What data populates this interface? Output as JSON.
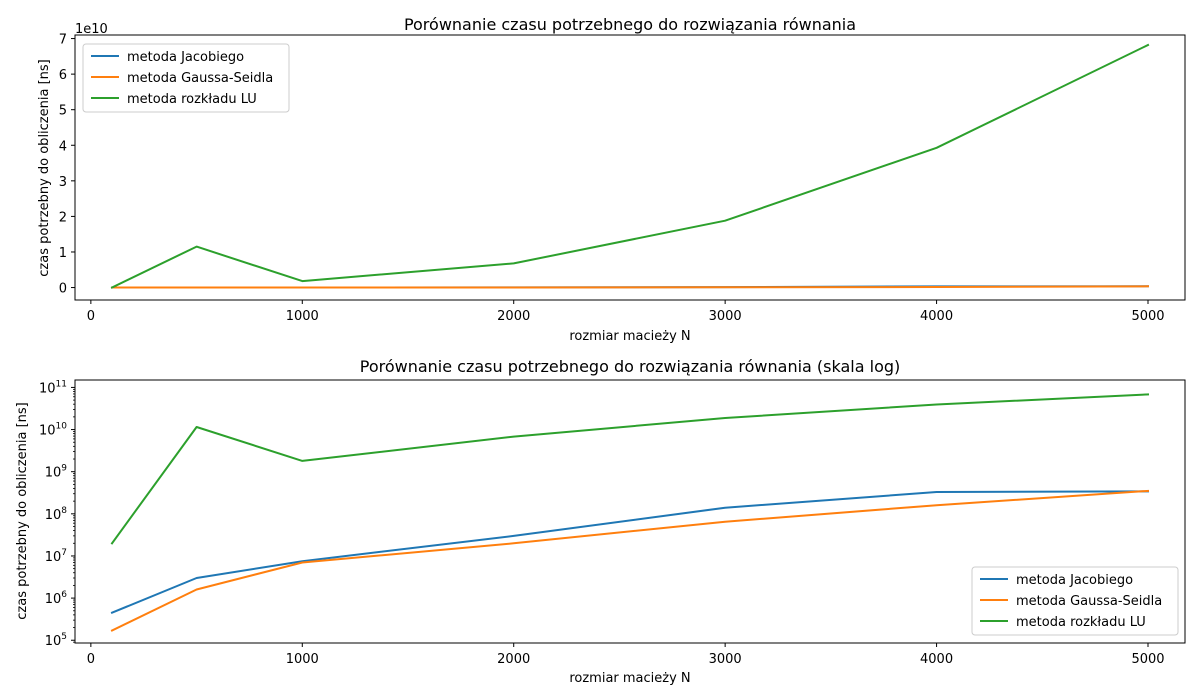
{
  "series_colors": {
    "jacobi": "#1f77b4",
    "gauss_seidel": "#ff7f0e",
    "lu": "#2ca02c"
  },
  "chart_data": [
    {
      "type": "line",
      "title": "Porównanie czasu potrzebnego do rozwiązania równania",
      "xlabel": "rozmiar macieży N",
      "ylabel": "czas potrzebny do obliczenia [ns]",
      "x": [
        100,
        500,
        1000,
        2000,
        3000,
        4000,
        5000
      ],
      "xlim": [
        -75,
        5175
      ],
      "ylim": [
        -0.35,
        7.1
      ],
      "yscale": "linear",
      "y_offset_text": "1e10",
      "x_ticks": [
        0,
        1000,
        2000,
        3000,
        4000,
        5000
      ],
      "y_ticks": [
        0,
        1,
        2,
        3,
        4,
        5,
        6,
        7
      ],
      "legend_position": "upper-left",
      "series": [
        {
          "name": "metoda Jacobiego",
          "color": "#1f77b4",
          "values": [
            4.5e-05,
            0.0003,
            0.00075,
            0.003,
            0.014,
            0.033,
            0.034
          ]
        },
        {
          "name": "metoda Gaussa-Seidla",
          "color": "#ff7f0e",
          "values": [
            1.7e-05,
            0.00016,
            0.0007,
            0.002,
            0.0065,
            0.016,
            0.035
          ]
        },
        {
          "name": "metoda rozkładu LU",
          "color": "#2ca02c",
          "values": [
            0.002,
            1.15,
            0.18,
            0.68,
            1.88,
            3.93,
            6.82
          ]
        }
      ]
    },
    {
      "type": "line",
      "title": "Porównanie czasu potrzebnego do rozwiązania równania (skala log)",
      "xlabel": "rozmiar macieży N",
      "ylabel": "czas potrzebny do obliczenia [ns]",
      "x": [
        100,
        500,
        1000,
        2000,
        3000,
        4000,
        5000
      ],
      "xlim": [
        -75,
        5175
      ],
      "ylim": [
        86000,
        150000000000
      ],
      "yscale": "log",
      "x_ticks": [
        0,
        1000,
        2000,
        3000,
        4000,
        5000
      ],
      "y_ticks": [
        5,
        6,
        7,
        8,
        9,
        10,
        11
      ],
      "legend_position": "lower-right",
      "series": [
        {
          "name": "metoda Jacobiego",
          "color": "#1f77b4",
          "values": [
            450000,
            3000000,
            7500000,
            30000000,
            140000000,
            330000000,
            340000000
          ]
        },
        {
          "name": "metoda Gaussa-Seidla",
          "color": "#ff7f0e",
          "values": [
            170000,
            1600000,
            7000000,
            20000000,
            65000000,
            160000000,
            350000000
          ]
        },
        {
          "name": "metoda rozkładu LU",
          "color": "#2ca02c",
          "values": [
            20000000,
            11500000000,
            1800000000,
            6800000000,
            18800000000,
            39300000000,
            68200000000
          ]
        }
      ]
    }
  ]
}
